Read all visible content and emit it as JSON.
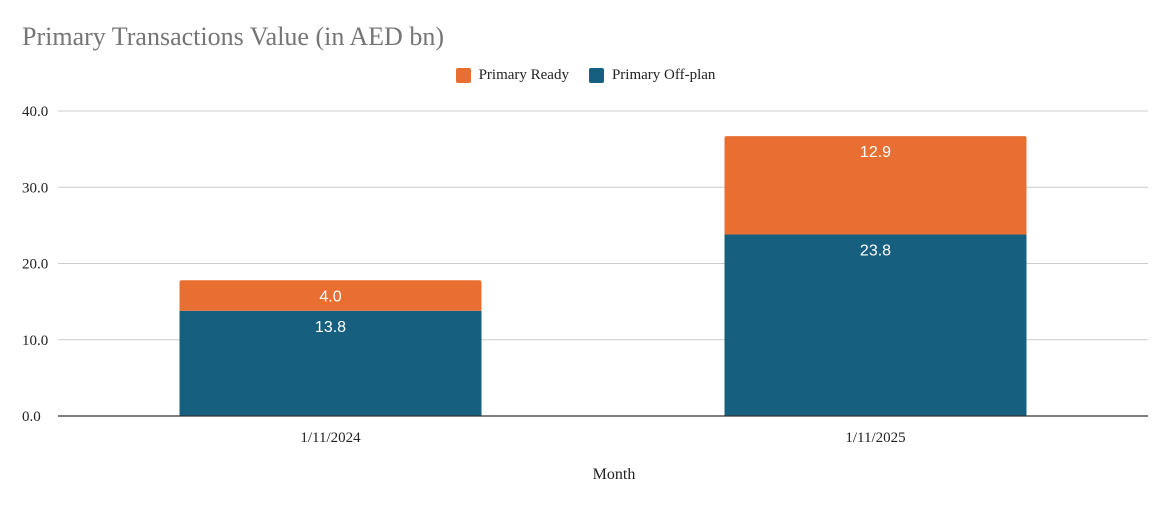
{
  "chart_data": {
    "type": "bar",
    "stacked": true,
    "title": "Primary Transactions Value (in AED bn)",
    "xlabel": "Month",
    "ylabel": "",
    "categories": [
      "1/11/2024",
      "1/11/2025"
    ],
    "series": [
      {
        "name": "Primary Off-plan",
        "values": [
          13.8,
          23.8
        ],
        "value_labels": [
          "13.8",
          "23.8"
        ],
        "color": "#175F7F"
      },
      {
        "name": "Primary Ready",
        "values": [
          4.0,
          12.9
        ],
        "value_labels": [
          "4.0",
          "12.9"
        ],
        "color": "#E86F31"
      }
    ],
    "legend_order": [
      1,
      0
    ],
    "legend_position": "top",
    "ylim": [
      0,
      40
    ],
    "yticks": [
      0,
      10,
      20,
      30,
      40
    ],
    "ytick_labels": [
      "0.0",
      "10.0",
      "20.0",
      "30.0",
      "40.0"
    ],
    "grid": true
  }
}
